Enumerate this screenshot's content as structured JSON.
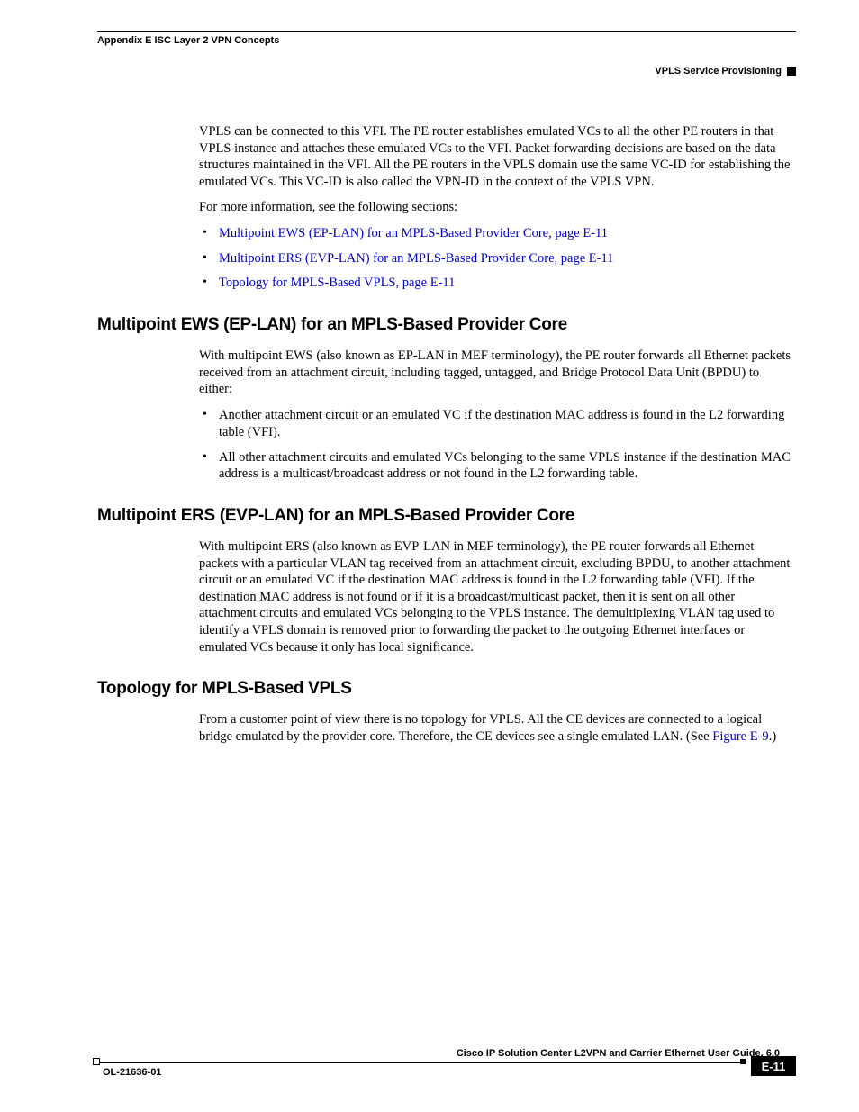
{
  "colors": {
    "text": "#000000",
    "link": "#0000cc",
    "background": "#ffffff",
    "rule": "#000000",
    "footer_box_bg": "#000000",
    "footer_box_text": "#ffffff"
  },
  "typography": {
    "body_family": "Times New Roman",
    "body_size_pt": 11,
    "heading_family": "Arial",
    "heading_size_pt": 14,
    "heading_weight": "bold",
    "header_footer_family": "Arial",
    "header_footer_size_pt": 8,
    "header_footer_weight": "bold"
  },
  "header": {
    "left": "Appendix E      ISC Layer 2 VPN Concepts",
    "right": "VPLS Service Provisioning"
  },
  "intro": {
    "p1": "VPLS can be connected to this VFI. The PE router establishes emulated VCs to all the other PE routers in that VPLS instance and attaches these emulated VCs to the VFI. Packet forwarding decisions are based on the data structures maintained in the VFI. All the PE routers in the VPLS domain use the same VC-ID for establishing the emulated VCs. This VC-ID is also called the VPN-ID in the context of the VPLS VPN.",
    "p2": "For more information, see the following sections:",
    "links": [
      "Multipoint EWS (EP-LAN) for an MPLS-Based Provider Core, page E-11",
      "Multipoint ERS (EVP-LAN) for an MPLS-Based Provider Core, page E-11",
      "Topology for MPLS-Based VPLS, page E-11"
    ]
  },
  "sections": {
    "ews": {
      "title": "Multipoint EWS (EP-LAN) for an MPLS-Based Provider Core",
      "p1": "With multipoint EWS (also known as EP-LAN in MEF terminology), the PE router forwards all Ethernet packets received from an attachment circuit, including tagged, untagged, and Bridge Protocol Data Unit (BPDU) to either:",
      "bullets": [
        "Another attachment circuit or an emulated VC if the destination MAC address is found in the L2 forwarding table (VFI).",
        "All other attachment circuits and emulated VCs belonging to the same VPLS instance if the destination MAC address is a multicast/broadcast address or not found in the L2 forwarding table."
      ]
    },
    "ers": {
      "title": "Multipoint ERS (EVP-LAN) for an MPLS-Based Provider Core",
      "p1": "With multipoint ERS (also known as EVP-LAN in MEF terminology), the PE router forwards all Ethernet packets with a particular VLAN tag received from an attachment circuit, excluding BPDU, to another attachment circuit or an emulated VC if the destination MAC address is found in the L2 forwarding table (VFI). If the destination MAC address is not found or if it is a broadcast/multicast packet, then it is sent on all other attachment circuits and emulated VCs belonging to the VPLS instance. The demultiplexing VLAN tag used to identify a VPLS domain is removed prior to forwarding the packet to the outgoing Ethernet interfaces or emulated VCs because it only has local significance."
    },
    "topology": {
      "title": "Topology for MPLS-Based VPLS",
      "p1_pre": "From a customer point of view there is no topology for VPLS. All the CE devices are connected to a logical bridge emulated by the provider core. Therefore, the CE devices see a single emulated LAN. (See ",
      "p1_link": "Figure E-9",
      "p1_post": ".)"
    }
  },
  "footer": {
    "title": "Cisco IP Solution Center L2VPN and Carrier Ethernet User Guide, 6.0",
    "docid": "OL-21636-01",
    "pageno": "E-11"
  }
}
